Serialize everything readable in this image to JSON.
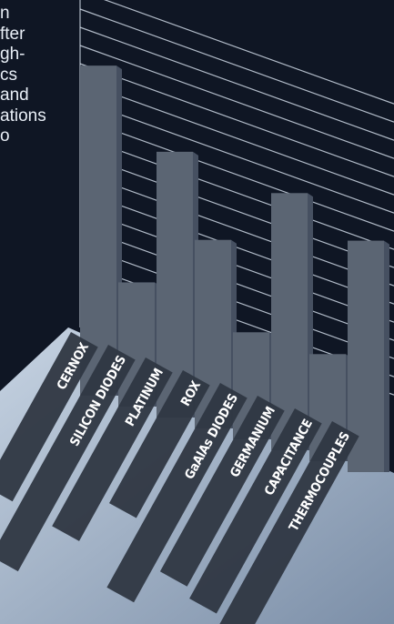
{
  "intro_text_lines": [
    "n",
    "fter",
    "gh-",
    "cs",
    "and",
    "ations",
    "o"
  ],
  "chart_data": {
    "type": "bar",
    "categories": [
      "CERNOX",
      "SILICON DIODES",
      "PLATINUM",
      "ROX",
      "GaAlAs DIODES",
      "GERMANIUM",
      "CAPACITANCE",
      "THERMOCOUPLES"
    ],
    "values": [
      6.0,
      1.2,
      4.5,
      2.7,
      0.8,
      4.3,
      0.8,
      3.7
    ],
    "ylim": [
      0,
      7
    ],
    "grid": true,
    "colors": {
      "background": "#0f1624",
      "bar": "#5b6573",
      "bar_side": "#465061",
      "floor_light": "#c6d3e2",
      "floor_dark": "#7c8fa8",
      "label_strip": "#2f3742",
      "label_text": "#ffffff",
      "grid": "#cfd9e6"
    }
  }
}
